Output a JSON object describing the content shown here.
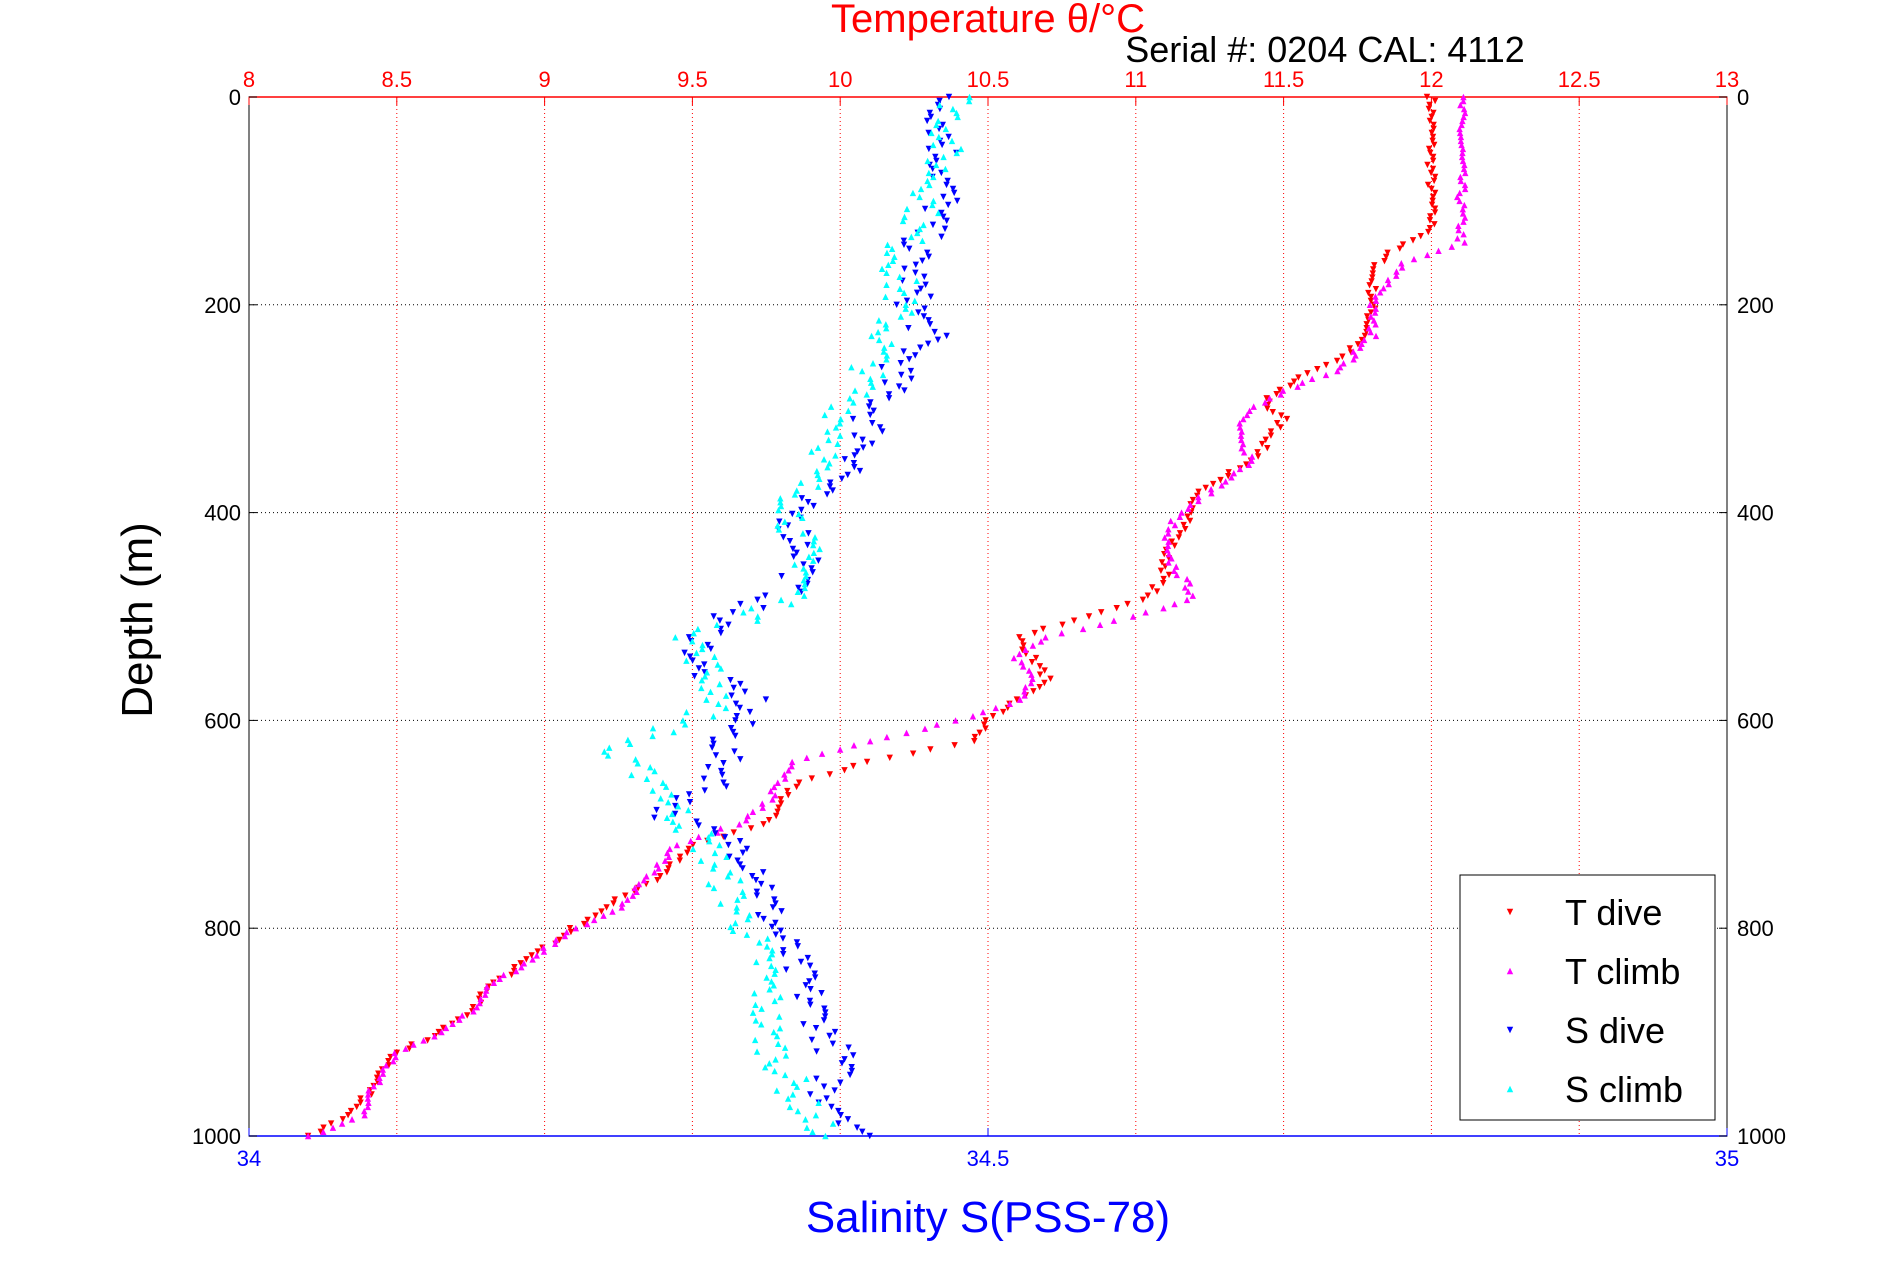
{
  "chart_data": {
    "type": "scatter",
    "title": "Temperature θ/°C",
    "annotation": "Serial #: 0204  CAL: 4112",
    "xlabel": "Salinity S(PSS-78)",
    "ylabel": "Depth (m)",
    "x_top": {
      "range": [
        8,
        13
      ],
      "ticks": [
        "8",
        "8.5",
        "9",
        "9.5",
        "10",
        "10.5",
        "11",
        "11.5",
        "12",
        "12.5",
        "13"
      ],
      "color": "#ff0000"
    },
    "x_bottom": {
      "range": [
        34,
        35
      ],
      "ticks": [
        "34",
        "34.5",
        "35"
      ],
      "color": "#0000ff"
    },
    "y": {
      "range": [
        0,
        1000
      ],
      "reversed": true,
      "ticks": [
        "0",
        "200",
        "400",
        "600",
        "800",
        "1000"
      ]
    },
    "grid": true,
    "legend_position": "bottom-right",
    "series": [
      {
        "name": "T dive",
        "axis": "top",
        "color": "#ff0000",
        "marker": "triangle-down",
        "depth": [
          0,
          50,
          100,
          130,
          150,
          170,
          200,
          230,
          250,
          270,
          290,
          300,
          310,
          330,
          350,
          380,
          400,
          420,
          440,
          460,
          480,
          500,
          520,
          540,
          560,
          580,
          600,
          620,
          640,
          660,
          680,
          700,
          720,
          750,
          780,
          800,
          830,
          860,
          880,
          900,
          920,
          940,
          960,
          980,
          1000
        ],
        "values": [
          12.0,
          12.0,
          12.0,
          12.0,
          11.85,
          11.8,
          11.8,
          11.78,
          11.7,
          11.55,
          11.45,
          11.45,
          11.5,
          11.45,
          11.4,
          11.2,
          11.2,
          11.15,
          11.1,
          11.1,
          11.05,
          10.85,
          10.6,
          10.65,
          10.7,
          10.6,
          10.5,
          10.45,
          10.1,
          9.85,
          9.8,
          9.75,
          9.5,
          9.4,
          9.2,
          9.1,
          8.95,
          8.8,
          8.75,
          8.65,
          8.5,
          8.45,
          8.4,
          8.35,
          8.2
        ]
      },
      {
        "name": "T climb",
        "axis": "top",
        "color": "#ff00ff",
        "marker": "triangle-up",
        "depth": [
          0,
          50,
          100,
          140,
          160,
          180,
          200,
          230,
          260,
          290,
          310,
          330,
          350,
          370,
          400,
          420,
          440,
          460,
          480,
          500,
          520,
          540,
          560,
          580,
          600,
          620,
          640,
          660,
          680,
          700,
          720,
          750,
          780,
          800,
          830,
          860,
          880,
          900,
          920,
          940,
          960,
          980,
          1000
        ],
        "values": [
          12.1,
          12.1,
          12.1,
          12.1,
          11.9,
          11.85,
          11.8,
          11.8,
          11.7,
          11.45,
          11.35,
          11.35,
          11.4,
          11.3,
          11.15,
          11.1,
          11.1,
          11.15,
          11.2,
          11.0,
          10.7,
          10.6,
          10.65,
          10.6,
          10.4,
          10.1,
          9.85,
          9.8,
          9.75,
          9.65,
          9.45,
          9.35,
          9.25,
          9.1,
          8.95,
          8.8,
          8.75,
          8.65,
          8.5,
          8.45,
          8.4,
          8.4,
          8.2
        ]
      },
      {
        "name": "S dive",
        "axis": "bottom",
        "color": "#0000ff",
        "marker": "triangle-down",
        "depth": [
          0,
          50,
          100,
          150,
          200,
          230,
          260,
          290,
          310,
          330,
          360,
          390,
          420,
          450,
          480,
          500,
          520,
          550,
          580,
          600,
          630,
          660,
          690,
          720,
          750,
          780,
          810,
          840,
          870,
          900,
          930,
          960,
          1000
        ],
        "values": [
          34.47,
          34.47,
          34.47,
          34.45,
          34.45,
          34.46,
          34.44,
          34.43,
          34.42,
          34.42,
          34.41,
          34.37,
          34.37,
          34.38,
          34.36,
          34.32,
          34.31,
          34.3,
          34.34,
          34.33,
          34.32,
          34.32,
          34.28,
          34.33,
          34.35,
          34.35,
          34.36,
          34.37,
          34.38,
          34.39,
          34.4,
          34.39,
          34.42
        ]
      },
      {
        "name": "S climb",
        "axis": "bottom",
        "color": "#00ffff",
        "marker": "triangle-up",
        "depth": [
          0,
          50,
          100,
          150,
          200,
          230,
          260,
          290,
          310,
          330,
          360,
          390,
          420,
          450,
          480,
          500,
          520,
          550,
          580,
          600,
          630,
          660,
          690,
          720,
          750,
          780,
          810,
          840,
          870,
          900,
          930,
          960,
          1000
        ],
        "values": [
          34.48,
          34.47,
          34.46,
          34.44,
          34.44,
          34.43,
          34.42,
          34.41,
          34.4,
          34.4,
          34.38,
          34.37,
          34.37,
          34.38,
          34.37,
          34.34,
          34.3,
          34.31,
          34.32,
          34.3,
          34.24,
          34.28,
          34.29,
          34.31,
          34.32,
          34.33,
          34.34,
          34.35,
          34.35,
          34.35,
          34.36,
          34.37,
          34.39
        ]
      }
    ]
  }
}
